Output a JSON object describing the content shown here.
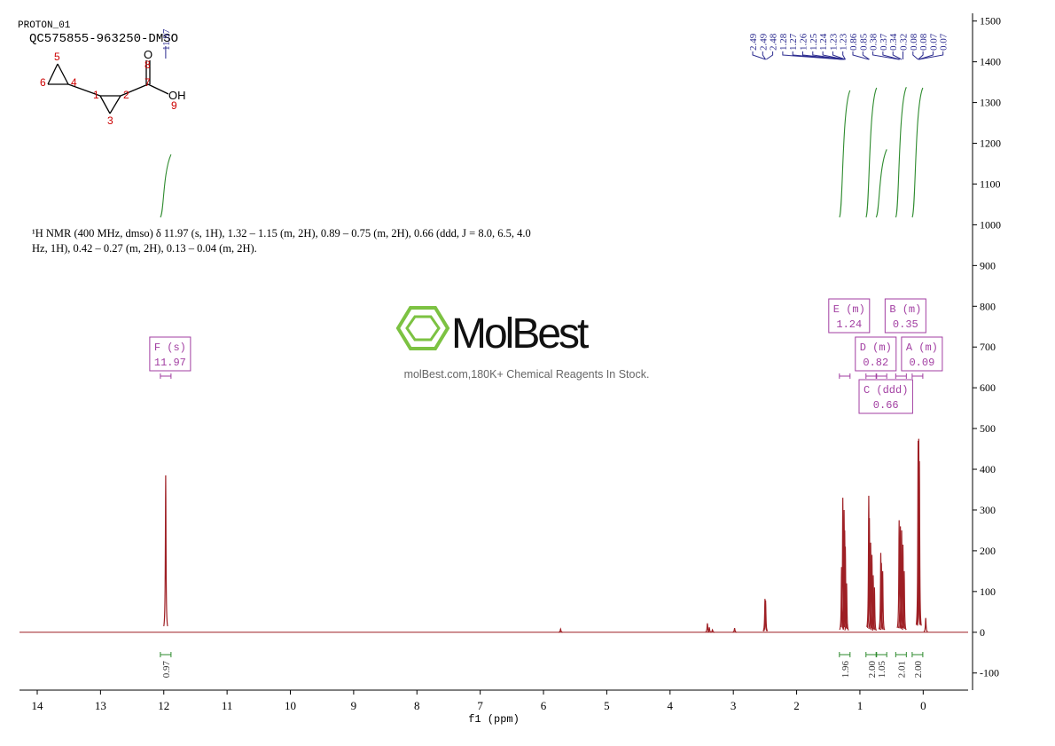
{
  "header": {
    "experiment": "PROTON_01",
    "sample": "QC575855-963250-DMSO"
  },
  "structure": {
    "atoms": [
      "5",
      "6",
      "4",
      "1",
      "2",
      "3",
      "7",
      "8",
      "9",
      "O",
      "OH"
    ]
  },
  "description": "¹H NMR (400 MHz, dmso) δ 11.97 (s, 1H), 1.32 – 1.15 (m, 2H), 0.89 – 0.75 (m, 2H), 0.66 (ddd, J = 8.0, 6.5, 4.0 Hz, 1H), 0.42 – 0.27 (m, 2H), 0.13 – 0.04 (m, 2H).",
  "watermark": {
    "brand": "MolBest",
    "tagline": "molBest.com,180K+ Chemical Reagents In Stock."
  },
  "chart_data": {
    "type": "line",
    "xlabel": "f1 (ppm)",
    "xlim": [
      14.28,
      -0.71
    ],
    "ylim": [
      -142,
      1519
    ],
    "xticks": [
      14,
      13,
      12,
      11,
      10,
      9,
      8,
      7,
      6,
      5,
      4,
      3,
      2,
      1,
      0
    ],
    "yticks": [
      -100,
      0,
      100,
      200,
      300,
      400,
      500,
      600,
      700,
      800,
      900,
      1000,
      1100,
      1200,
      1300,
      1400,
      1500
    ],
    "color": "#9e1f24",
    "peaks": {
      "x": [
        11.97,
        5.73,
        3.41,
        3.38,
        3.33,
        2.98,
        2.5,
        2.49,
        1.29,
        1.27,
        1.25,
        1.24,
        1.23,
        1.21,
        0.86,
        0.85,
        0.83,
        0.81,
        0.79,
        0.77,
        0.67,
        0.66,
        0.64,
        0.38,
        0.36,
        0.34,
        0.32,
        0.3,
        0.08,
        0.07,
        0.06,
        -0.04
      ],
      "values": [
        385,
        8,
        22,
        12,
        6,
        10,
        82,
        78,
        160,
        330,
        300,
        250,
        210,
        120,
        335,
        280,
        220,
        190,
        140,
        110,
        195,
        170,
        150,
        275,
        260,
        250,
        215,
        150,
        470,
        475,
        420,
        35
      ]
    },
    "peak_labels": [
      11.97,
      2.49,
      2.49,
      2.48,
      1.28,
      1.27,
      1.26,
      1.25,
      1.24,
      1.23,
      1.23,
      0.86,
      0.85,
      0.38,
      0.37,
      0.34,
      0.32,
      0.08,
      0.08,
      0.07,
      0.07
    ],
    "multiplets": [
      {
        "name": "F (s)",
        "value": 11.97
      },
      {
        "name": "E (m)",
        "value": 1.24
      },
      {
        "name": "D (m)",
        "value": 0.82
      },
      {
        "name": "C (ddd)",
        "value": 0.66
      },
      {
        "name": "B (m)",
        "value": 0.35
      },
      {
        "name": "A (m)",
        "value": 0.09
      }
    ],
    "integrals": {
      "color": "#2e8b2e",
      "x": [
        11.97,
        1.24,
        0.82,
        0.66,
        0.35,
        0.09
      ],
      "values": [
        0.97,
        1.96,
        2.0,
        1.05,
        2.01,
        2.0
      ],
      "value_labels": [
        "0.97",
        "1.96",
        "2.00",
        "1.05",
        "2.01",
        "2.00"
      ]
    }
  }
}
